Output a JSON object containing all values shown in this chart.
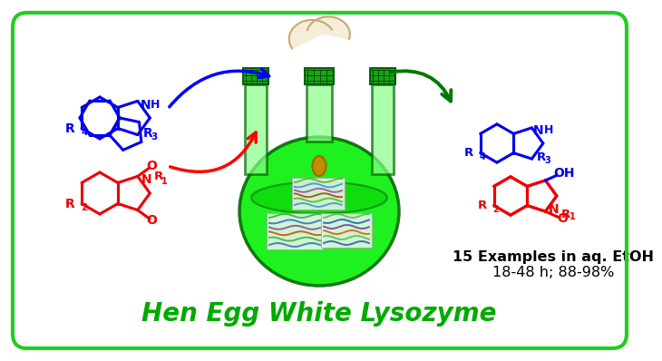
{
  "title": "Hen Egg White Lysozyme",
  "title_color": "#00AA00",
  "title_fontsize": 20,
  "background_color": "#FFFFFF",
  "border_color": "#22CC22",
  "examples_text": "15 Examples in aq. EtOH",
  "yield_text": "18-48 h; 88-98%",
  "examples_fontsize": 11.5,
  "blue": "#0000EE",
  "red": "#EE0000",
  "green_arrow": "#007700",
  "flask_green": "#00DD00",
  "flask_edge": "#007700"
}
